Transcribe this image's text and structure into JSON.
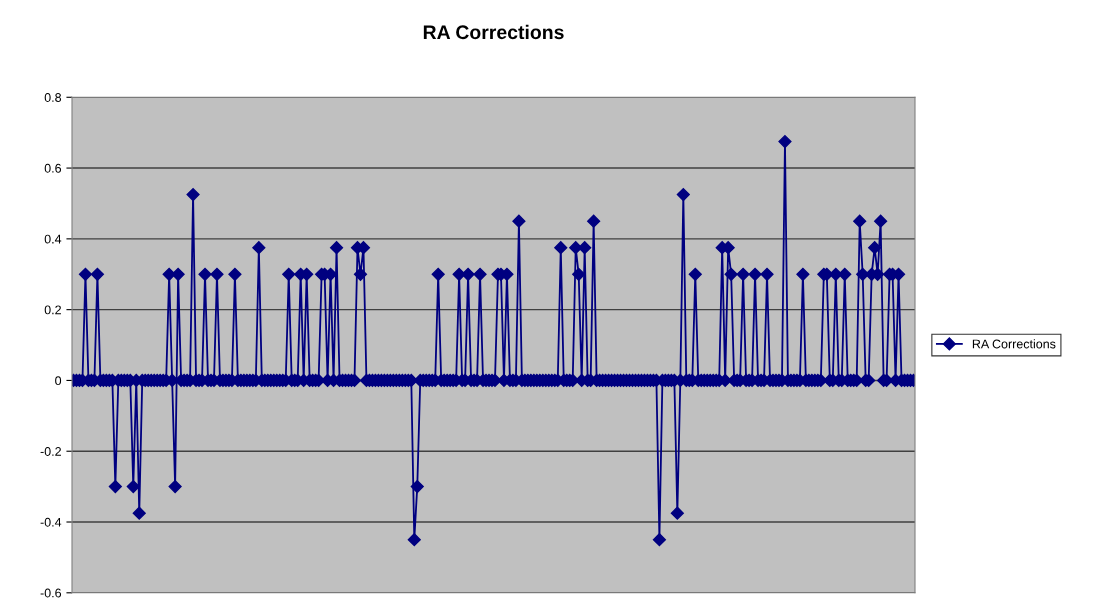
{
  "chart_data": {
    "type": "line",
    "title": "RA Corrections",
    "categories": [
      null,
      null,
      null,
      null,
      null,
      null,
      null,
      null,
      null,
      null,
      null,
      null,
      null,
      null,
      null,
      null,
      null,
      null,
      null,
      null,
      null,
      null,
      null,
      null,
      null,
      null,
      null,
      null,
      null,
      null,
      null,
      null,
      null,
      null,
      null,
      null,
      null,
      null,
      null,
      null,
      null,
      null,
      null,
      null,
      null,
      null,
      null,
      null,
      null,
      null,
      null,
      null,
      null,
      null,
      null,
      null,
      null,
      null,
      null,
      null,
      null,
      null,
      null,
      null,
      null,
      null,
      null,
      null,
      null,
      null,
      null,
      null,
      null,
      null,
      null,
      null,
      null,
      null,
      null,
      null,
      null,
      null,
      null,
      null,
      null,
      null,
      null,
      null,
      null,
      null,
      null,
      null,
      null,
      null,
      null,
      null,
      null,
      null,
      null,
      null,
      null,
      null,
      null,
      null,
      null,
      null,
      null,
      null,
      null,
      null,
      null,
      null,
      null,
      null,
      null,
      null,
      null,
      null,
      null,
      null,
      null,
      null,
      null,
      null,
      null,
      null,
      null,
      null,
      null,
      null,
      null,
      null,
      null,
      null,
      null,
      null,
      null,
      null,
      null,
      null,
      null,
      null,
      null,
      null,
      null,
      null,
      null,
      null,
      null,
      null,
      null,
      null,
      null,
      null,
      null,
      null,
      null,
      null,
      null,
      null,
      null,
      null,
      null,
      null,
      null,
      null,
      null,
      null,
      null,
      null,
      null,
      null,
      null,
      null,
      null,
      null,
      null,
      null,
      null,
      null,
      null,
      null,
      null,
      null,
      null,
      null,
      null,
      null,
      null,
      null,
      null,
      null,
      null,
      null,
      null,
      null,
      null,
      null,
      null,
      null,
      null,
      null,
      null,
      null,
      null,
      null,
      null,
      null,
      null,
      null,
      null,
      null,
      null,
      null,
      null,
      null,
      null,
      null,
      null,
      null,
      null,
      null,
      null,
      null,
      null,
      null,
      null,
      null,
      null,
      null,
      null,
      null,
      null,
      null,
      null,
      null,
      null,
      null,
      null,
      null,
      null,
      null,
      null,
      null,
      null,
      null,
      null,
      null,
      null,
      null,
      null,
      null,
      null,
      null,
      null,
      null,
      null,
      null,
      null,
      null,
      null,
      null,
      null,
      null,
      null,
      null,
      null,
      null,
      null,
      null,
      null,
      null,
      null,
      null,
      null,
      null,
      null,
      null,
      null,
      null,
      null,
      null
    ],
    "series": [
      {
        "name": "RA Corrections",
        "color": "#000080",
        "values": [
          0,
          0,
          0,
          0,
          0.3,
          0,
          0,
          0,
          0.3,
          0,
          0,
          0,
          0,
          0,
          -0.3,
          0,
          0,
          0,
          0,
          0,
          -0.3,
          0,
          -0.375,
          0,
          0,
          0,
          0,
          0,
          0,
          0,
          0,
          0,
          0.3,
          0,
          -0.3,
          0.3,
          0,
          0,
          0,
          0,
          0.525,
          0,
          0,
          0,
          0.3,
          0,
          0,
          0,
          0.3,
          0,
          0,
          0,
          0,
          0,
          0.3,
          0,
          0,
          0,
          0,
          0,
          0,
          0,
          0.375,
          0,
          0,
          0,
          0,
          0,
          0,
          0,
          0,
          0,
          0.3,
          0,
          0,
          0,
          0.3,
          0,
          0.3,
          0,
          0,
          0,
          0,
          0.3,
          0.3,
          0,
          0.3,
          0,
          0.375,
          0,
          0,
          0,
          0,
          0,
          0,
          0.375,
          0.3,
          0.375,
          0,
          0,
          0,
          0,
          0,
          0,
          0,
          0,
          0,
          0,
          0,
          0,
          0,
          0,
          0,
          0,
          -0.45,
          -0.3,
          0,
          0,
          0,
          0,
          0,
          0,
          0.3,
          0,
          0,
          0,
          0,
          0,
          0,
          0.3,
          0,
          0,
          0.3,
          0,
          0,
          0,
          0.3,
          0,
          0,
          0,
          0,
          0,
          0.3,
          0.3,
          0,
          0.3,
          0,
          0,
          0,
          0.45,
          0,
          0,
          0,
          0,
          0,
          0,
          0,
          0,
          0,
          0,
          0,
          0,
          0,
          0.375,
          0,
          0,
          0,
          0,
          0.375,
          0.3,
          0,
          0.375,
          0,
          0,
          0.45,
          0,
          0,
          0,
          0,
          0,
          0,
          0,
          0,
          0,
          0,
          0,
          0,
          0,
          0,
          0,
          0,
          0,
          0,
          0,
          0,
          0,
          -0.45,
          0,
          0,
          0,
          0,
          0,
          -0.375,
          0,
          0.525,
          0,
          0,
          0,
          0.3,
          0,
          0,
          0,
          0,
          0,
          0,
          0,
          0,
          0.375,
          0,
          0.375,
          0.3,
          0,
          0,
          0,
          0.3,
          0,
          0,
          0,
          0.3,
          0,
          0,
          0,
          0.3,
          0,
          0,
          0,
          0,
          0,
          0.675,
          0,
          0,
          0,
          0,
          0,
          0.3,
          0,
          0,
          0,
          0,
          0,
          0,
          0.3,
          0.3,
          0,
          0,
          0.3,
          0,
          0,
          0.3,
          0,
          0,
          0,
          0,
          0.45,
          0.3,
          0,
          0,
          0.3,
          0.375,
          0.3,
          0.45,
          0,
          0,
          0.3,
          0.3,
          0,
          0.3,
          0,
          0,
          0,
          0,
          0
        ]
      }
    ],
    "ylim": [
      -0.6,
      0.8
    ],
    "yticks": [
      -0.6,
      -0.4,
      -0.2,
      0,
      0.2,
      0.4,
      0.6,
      0.8
    ],
    "grid": "y",
    "legend": "right",
    "marker": "diamond",
    "line_style": "solid",
    "tick_labels": "y"
  }
}
